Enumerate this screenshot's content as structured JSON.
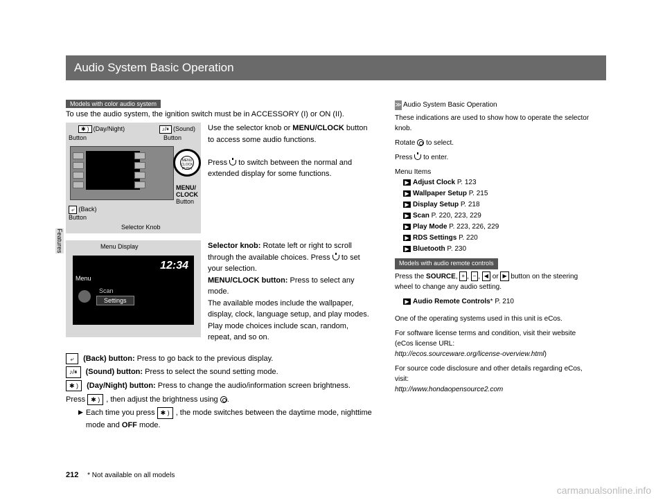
{
  "page_number": "212",
  "side_tab": "Features",
  "title": "Audio System Basic Operation",
  "model_tag": "Models with color audio system",
  "intro": "To use the audio system, the ignition switch must be in ACCESSORY (I) or ON (II).",
  "diagram1": {
    "daynight_label": "(Day/Night)",
    "sound_label": "(Sound)",
    "button_label": "Button",
    "back_label": "(Back)",
    "menuclock_label": "MENU/\nCLOCK",
    "selector_label": "Selector Knob",
    "knob_text": "MENU CLOCK PUSH"
  },
  "para1_line1": "Use the selector knob or ",
  "para1_bold1": "MENU/CLOCK",
  "para1_line2": " button to access some audio functions.",
  "para1_line3": "Press ",
  "para1_line4": " to switch between the normal and extended display for some functions.",
  "diagram2": {
    "label": "Menu Display",
    "time": "12:34",
    "menu": "Menu",
    "scan": "Scan",
    "settings": "Settings"
  },
  "para2": {
    "t1_bold": "Selector knob:",
    "t1": " Rotate left or right to scroll through the available choices. Press ",
    "t1b": " to set your selection.",
    "t2_bold": "MENU/CLOCK button:",
    "t2": " Press to select any mode.",
    "t3": "The available modes include the wallpaper, display, clock, language setup, and play modes. Play mode choices include scan, random, repeat, and so on."
  },
  "buttons": {
    "back_icon": "⤶",
    "back_bold": "(Back) button:",
    "back_text": " Press to go back to the previous display.",
    "sound_icon": "♪/⏸",
    "sound_bold": "(Sound) button:",
    "sound_text": " Press to select the sound setting mode.",
    "daynight_icon": "✱ )",
    "daynight_bold": "(Day/Night) button:",
    "daynight_text": " Press to change the audio/information screen brightness.",
    "press_line1a": "Press ",
    "press_line1b": ", then adjust the brightness using ",
    "press_line1c": ".",
    "bullet1a": "Each time you press ",
    "bullet1b": ", the mode switches between the daytime mode, nighttime mode and ",
    "bullet1_bold": "OFF",
    "bullet1c": " mode."
  },
  "footnote": "* Not available on all models",
  "right": {
    "header": "Audio System Basic Operation",
    "p1": "These indications are used to show how to operate the selector knob.",
    "p2a": "Rotate ",
    "p2b": " to select.",
    "p3a": "Press ",
    "p3b": " to enter.",
    "menu_label": "Menu Items",
    "items": [
      {
        "bold": "Adjust Clock",
        "page": "P. 123"
      },
      {
        "bold": "Wallpaper Setup",
        "page": "P. 215"
      },
      {
        "bold": "Display Setup",
        "page": "P. 218"
      },
      {
        "bold": "Scan",
        "page": "P. 220, 223, 229"
      },
      {
        "bold": "Play Mode",
        "page": "P. 223, 226, 229"
      },
      {
        "bold": "RDS Settings",
        "page": "P. 220"
      },
      {
        "bold": "Bluetooth",
        "page": "P. 230"
      }
    ],
    "model_tag2": "Models with audio remote controls",
    "source_line_a": "Press the ",
    "source_bold": "SOURCE",
    "source_line_b": ", ",
    "source_icons": [
      "+",
      "−",
      "◀",
      "▶"
    ],
    "source_line_c": " button on the steering wheel to change any audio setting.",
    "remote_bold": "Audio Remote Controls",
    "remote_star": "*",
    "remote_page": " P. 210",
    "ecos1": "One of the operating systems used in this unit is eCos.",
    "ecos2": "For software license terms and condition, visit their website (eCos license URL:",
    "ecos_url1": "http://ecos.sourceware.org/license-overview.html",
    "ecos3": "For source code disclosure and other details regarding eCos, visit:",
    "ecos_url2": "http://www.hondaopensource2.com"
  },
  "watermark": "carmanualsonline.info"
}
